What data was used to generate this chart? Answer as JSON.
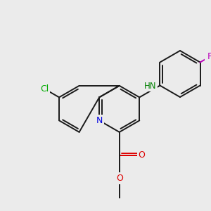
{
  "background_color": "#ebebeb",
  "bond_color": "#1a1a1a",
  "atom_colors": {
    "N_quinoline": "#0000e0",
    "N_amine": "#008000",
    "Cl": "#00aa00",
    "F": "#bb00bb",
    "O": "#dd0000",
    "C": "#1a1a1a"
  },
  "figsize": [
    3.0,
    3.0
  ],
  "dpi": 100
}
